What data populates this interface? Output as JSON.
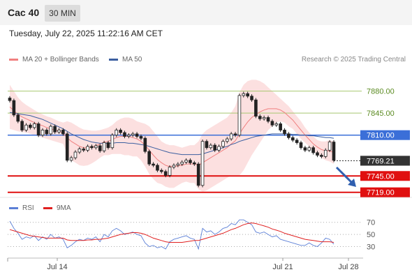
{
  "header": {
    "title": "Cac 40",
    "timeframe": "30 MIN"
  },
  "datetime": "Tuesday, July 22, 2025 11:22:16 AM CET",
  "legend": {
    "ma20_label": "MA 20 + Bollinger Bands",
    "ma50_label": "MA 50",
    "rsi_label": "RSI",
    "ma9_label": "9MA",
    "ma20_color": "#f08080",
    "ma50_color": "#3c5fa0",
    "rsi_color": "#5b7fd6",
    "ma9_color": "#e02020"
  },
  "credit": "Research © 2025 Trading Central",
  "chart_data": {
    "type": "candlestick",
    "instrument": "Cac 40",
    "interval": "30 MIN",
    "y_range": [
      7712,
      7914
    ],
    "x_ticks": [
      "Jul 14",
      "Jul 21",
      "Jul 28"
    ],
    "levels": [
      {
        "label": "7880.00",
        "value": 7880,
        "kind": "resistance",
        "color": "#a8c870",
        "text_color": "#5a8a20"
      },
      {
        "label": "7845.00",
        "value": 7845,
        "kind": "resistance",
        "color": "#a8c870",
        "text_color": "#5a8a20"
      },
      {
        "label": "7810.00",
        "value": 7810,
        "kind": "pivot",
        "color": "#3b6fd8",
        "text_color": "#ffffff"
      },
      {
        "label": "7769.21",
        "value": 7769.21,
        "kind": "last-price",
        "color": "#333333",
        "text_color": "#ffffff"
      },
      {
        "label": "7745.00",
        "value": 7745,
        "kind": "support",
        "color": "#e01010",
        "text_color": "#ffffff"
      },
      {
        "label": "7719.00",
        "value": 7719,
        "kind": "support",
        "color": "#e01010",
        "text_color": "#ffffff"
      }
    ],
    "close": [
      7865,
      7842,
      7832,
      7818,
      7826,
      7822,
      7828,
      7810,
      7818,
      7812,
      7824,
      7815,
      7818,
      7812,
      7770,
      7774,
      7783,
      7788,
      7786,
      7792,
      7790,
      7793,
      7785,
      7798,
      7790,
      7810,
      7818,
      7814,
      7808,
      7810,
      7812,
      7808,
      7805,
      7784,
      7764,
      7762,
      7754,
      7752,
      7746,
      7759,
      7762,
      7764,
      7767,
      7770,
      7766,
      7764,
      7730,
      7800,
      7790,
      7794,
      7786,
      7792,
      7800,
      7804,
      7812,
      7810,
      7873,
      7876,
      7872,
      7866,
      7840,
      7836,
      7838,
      7832,
      7826,
      7828,
      7818,
      7812,
      7806,
      7802,
      7798,
      7790,
      7786,
      7790,
      7782,
      7778,
      7776,
      7786,
      7799,
      7770
    ],
    "ma20": [
      7855,
      7849,
      7843,
      7839,
      7836,
      7833,
      7830,
      7827,
      7825,
      7822,
      7820,
      7818,
      7816,
      7813,
      7806,
      7800,
      7796,
      7792,
      7790,
      7790,
      7791,
      7793,
      7796,
      7799,
      7800,
      7803,
      7806,
      7808,
      7808,
      7808,
      7806,
      7804,
      7800,
      7794,
      7786,
      7778,
      7771,
      7766,
      7762,
      7760,
      7760,
      7761,
      7762,
      7764,
      7764,
      7764,
      7762,
      7766,
      7770,
      7774,
      7778,
      7782,
      7786,
      7790,
      7796,
      7801,
      7812,
      7822,
      7831,
      7838,
      7843,
      7847,
      7850,
      7852,
      7852,
      7852,
      7850,
      7846,
      7840,
      7834,
      7826,
      7818,
      7810,
      7803,
      7796,
      7791,
      7787,
      7785,
      7785,
      7782
    ],
    "bb_upper": [
      7890,
      7880,
      7870,
      7863,
      7858,
      7854,
      7850,
      7846,
      7843,
      7840,
      7838,
      7835,
      7832,
      7830,
      7832,
      7830,
      7826,
      7822,
      7819,
      7818,
      7817,
      7817,
      7818,
      7820,
      7822,
      7826,
      7832,
      7836,
      7838,
      7838,
      7836,
      7832,
      7830,
      7828,
      7824,
      7816,
      7808,
      7800,
      7796,
      7794,
      7794,
      7792,
      7790,
      7792,
      7794,
      7794,
      7800,
      7812,
      7818,
      7822,
      7826,
      7830,
      7834,
      7838,
      7846,
      7856,
      7878,
      7890,
      7896,
      7898,
      7898,
      7896,
      7892,
      7886,
      7880,
      7874,
      7868,
      7862,
      7856,
      7848,
      7840,
      7832,
      7822,
      7814,
      7808,
      7802,
      7800,
      7800,
      7802,
      7800
    ],
    "bb_lower": [
      7820,
      7818,
      7816,
      7815,
      7814,
      7812,
      7810,
      7808,
      7806,
      7804,
      7802,
      7800,
      7798,
      7796,
      7780,
      7770,
      7766,
      7762,
      7761,
      7762,
      7765,
      7769,
      7774,
      7778,
      7778,
      7780,
      7780,
      7780,
      7778,
      7778,
      7776,
      7776,
      7770,
      7760,
      7748,
      7740,
      7734,
      7732,
      7728,
      7726,
      7726,
      7730,
      7734,
      7736,
      7734,
      7734,
      7724,
      7720,
      7722,
      7726,
      7730,
      7734,
      7738,
      7742,
      7746,
      7746,
      7746,
      7754,
      7766,
      7778,
      7788,
      7798,
      7808,
      7818,
      7824,
      7830,
      7832,
      7830,
      7824,
      7820,
      7812,
      7804,
      7798,
      7792,
      7784,
      7780,
      7774,
      7770,
      7768,
      7764
    ],
    "ma50": [
      7846,
      7845,
      7844,
      7843,
      7842,
      7841,
      7839,
      7837,
      7835,
      7832,
      7829,
      7826,
      7823,
      7820,
      7816,
      7812,
      7809,
      7806,
      7803,
      7801,
      7799,
      7798,
      7797,
      7797,
      7797,
      7797,
      7798,
      7798,
      7798,
      7797,
      7797,
      7796,
      7795,
      7794,
      7792,
      7790,
      7788,
      7786,
      7784,
      7782,
      7781,
      7780,
      7779,
      7779,
      7779,
      7779,
      7779,
      7780,
      7782,
      7784,
      7786,
      7788,
      7790,
      7792,
      7795,
      7797,
      7800,
      7802,
      7804,
      7806,
      7808,
      7809,
      7810,
      7811,
      7812,
      7812,
      7812,
      7812,
      7812,
      7811,
      7811,
      7810,
      7810,
      7809,
      7809,
      7808,
      7807,
      7806,
      7806,
      7805
    ],
    "rsi_panel": {
      "y_range": [
        18,
        80
      ],
      "ticks": [
        70,
        50,
        30
      ],
      "rsi": [
        72,
        60,
        52,
        42,
        46,
        44,
        48,
        40,
        46,
        42,
        50,
        44,
        46,
        42,
        28,
        32,
        38,
        42,
        40,
        44,
        42,
        46,
        38,
        50,
        46,
        56,
        60,
        56,
        50,
        52,
        54,
        50,
        48,
        36,
        30,
        32,
        28,
        30,
        26,
        38,
        42,
        44,
        46,
        48,
        44,
        42,
        26,
        60,
        54,
        56,
        50,
        54,
        60,
        62,
        68,
        66,
        74,
        74,
        70,
        66,
        54,
        52,
        54,
        50,
        46,
        48,
        42,
        40,
        38,
        36,
        34,
        32,
        32,
        36,
        32,
        30,
        36,
        44,
        42,
        34
      ],
      "ma9": [
        58,
        56,
        54,
        52,
        50,
        48,
        47,
        46,
        45,
        44,
        44,
        44,
        44,
        44,
        41,
        40,
        40,
        40,
        40,
        41,
        41,
        42,
        42,
        43,
        44,
        46,
        48,
        50,
        51,
        52,
        53,
        53,
        52,
        50,
        47,
        44,
        42,
        40,
        38,
        37,
        37,
        37,
        37,
        38,
        39,
        40,
        40,
        42,
        44,
        46,
        48,
        50,
        52,
        55,
        58,
        60,
        63,
        66,
        68,
        69,
        68,
        66,
        64,
        62,
        59,
        57,
        55,
        52,
        50,
        48,
        46,
        44,
        42,
        41,
        40,
        39,
        38,
        38,
        38,
        37
      ]
    }
  }
}
